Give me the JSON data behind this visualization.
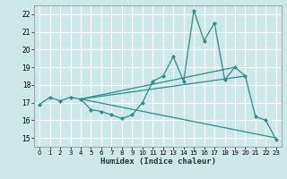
{
  "xlabel": "Humidex (Indice chaleur)",
  "bg_color": "#cce8e8",
  "grid_color": "#ffffff",
  "line_color": "#2d8b8b",
  "xlim": [
    -0.5,
    23.5
  ],
  "ylim": [
    14.5,
    22.5
  ],
  "xticks": [
    0,
    1,
    2,
    3,
    4,
    5,
    6,
    7,
    8,
    9,
    10,
    11,
    12,
    13,
    14,
    15,
    16,
    17,
    18,
    19,
    20,
    21,
    22,
    23
  ],
  "yticks": [
    15,
    16,
    17,
    18,
    19,
    20,
    21,
    22
  ],
  "main_series": {
    "x": [
      0,
      1,
      2,
      3,
      4,
      5,
      6,
      7,
      8,
      9,
      10,
      11,
      12,
      13,
      14,
      15,
      16,
      17,
      18,
      19,
      20,
      21,
      22,
      23
    ],
    "y": [
      16.9,
      17.3,
      17.1,
      17.3,
      17.2,
      16.6,
      16.5,
      16.3,
      16.1,
      16.3,
      17.0,
      18.2,
      18.5,
      19.6,
      18.2,
      22.2,
      20.5,
      21.5,
      18.3,
      19.0,
      18.5,
      16.2,
      16.0,
      14.9
    ]
  },
  "trend_lines": [
    {
      "x": [
        4,
        23
      ],
      "y": [
        17.2,
        15.0
      ]
    },
    {
      "x": [
        4,
        19
      ],
      "y": [
        17.2,
        19.0
      ]
    },
    {
      "x": [
        4,
        20
      ],
      "y": [
        17.2,
        18.5
      ]
    }
  ]
}
